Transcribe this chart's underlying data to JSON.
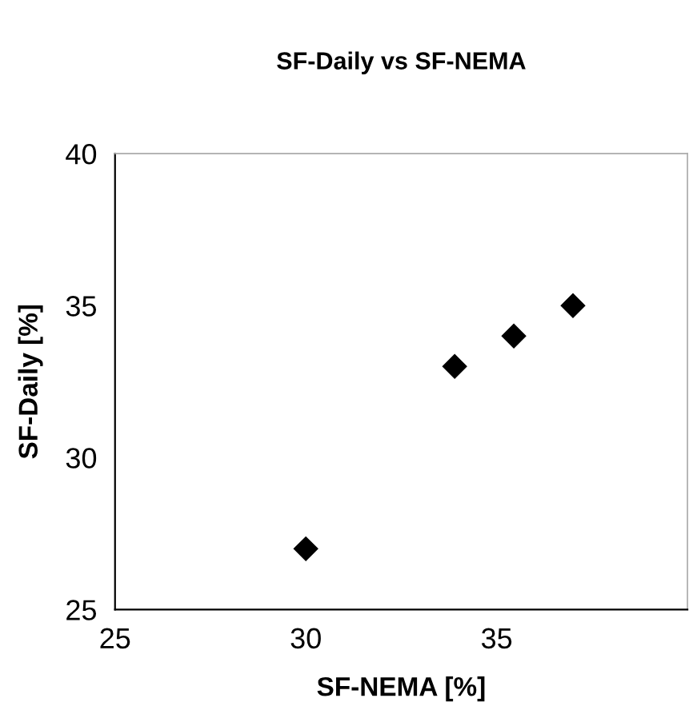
{
  "chart_data": {
    "type": "scatter",
    "title": "SF-Daily vs SF-NEMA",
    "xlabel": "SF-NEMA [%]",
    "ylabel": "SF-Daily [%]",
    "x": [
      30,
      33.9,
      35.45,
      37
    ],
    "series": [
      {
        "color": "#000000",
        "values": [
          27,
          33,
          34,
          35
        ]
      }
    ],
    "xlim": [
      25,
      40
    ],
    "xticks": [
      25,
      30,
      35
    ],
    "ylim": [
      25,
      40
    ],
    "yticks": [
      25,
      30,
      35,
      40
    ],
    "marker": "diamond",
    "grid": false,
    "legend": false
  }
}
